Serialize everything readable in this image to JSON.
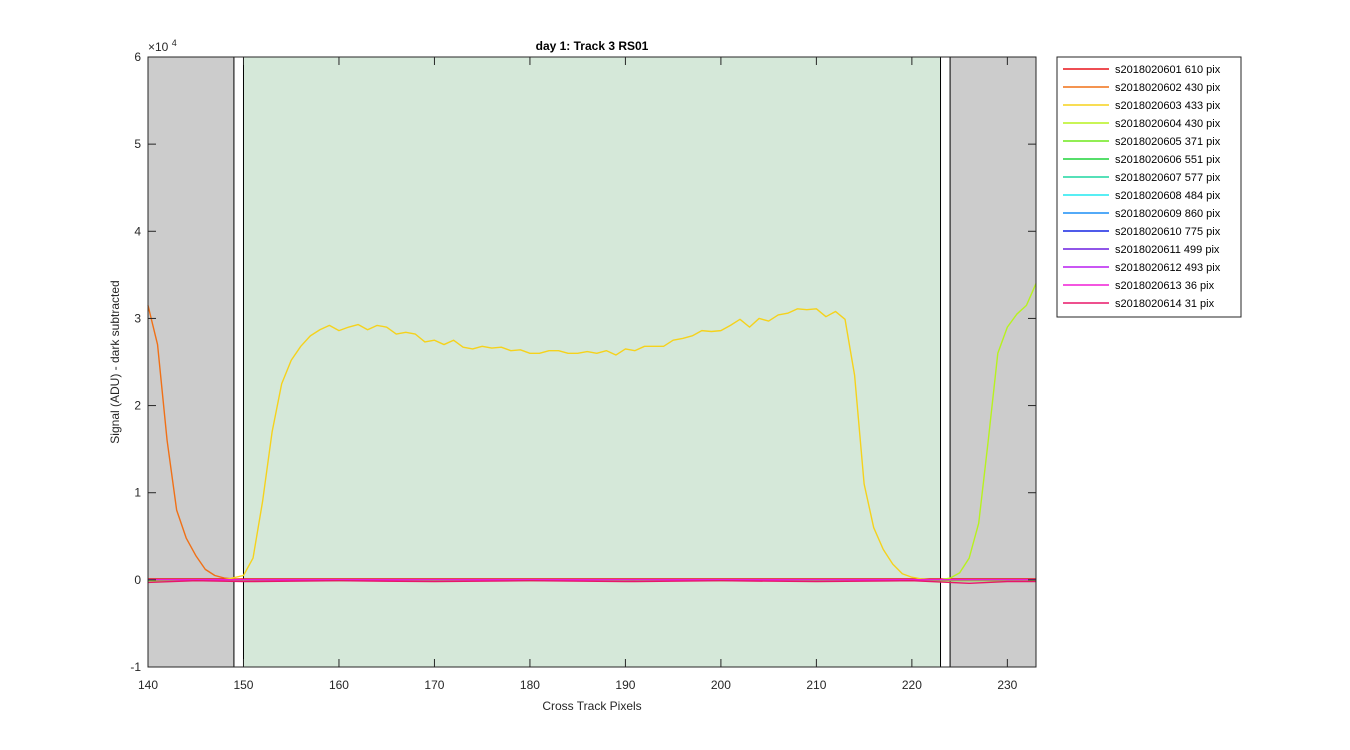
{
  "chart_data": {
    "type": "line",
    "title": "day 1: Track 3  RS01",
    "xlabel": "Cross Track Pixels",
    "ylabel": "Signal (ADU) - dark subtracted",
    "y_exponent_label": "×10",
    "y_exponent_power": "4",
    "xlim": [
      140,
      233
    ],
    "ylim": [
      -1,
      6
    ],
    "y_scale_note": "values in units of 10^4 ADU",
    "xticks": [
      140,
      150,
      160,
      170,
      180,
      190,
      200,
      210,
      220,
      230
    ],
    "yticks": [
      -1,
      0,
      1,
      2,
      3,
      4,
      5,
      6
    ],
    "grid": false,
    "legend_position": "outside-right",
    "regions": [
      {
        "kind": "excluded",
        "x0": 140,
        "x1": 149,
        "color": "#cccccc"
      },
      {
        "kind": "excluded",
        "x0": 224,
        "x1": 233,
        "color": "#cccccc"
      },
      {
        "kind": "included",
        "x0": 150,
        "x1": 223,
        "color": "#d5e8d9"
      }
    ],
    "boundary_boxes": [
      {
        "x0": 149,
        "x1": 150
      },
      {
        "x0": 223,
        "x1": 224
      }
    ],
    "series": [
      {
        "name": "s2018020601 610 pix",
        "color": "#e8141a",
        "x": [
          140,
          233
        ],
        "y": [
          0.01,
          0.01
        ]
      },
      {
        "name": "s2018020602 430 pix",
        "color": "#f07016",
        "x": [
          140,
          141,
          142,
          143,
          144,
          145,
          146,
          147,
          148,
          149,
          150,
          233
        ],
        "y": [
          3.15,
          2.7,
          1.6,
          0.8,
          0.48,
          0.28,
          0.12,
          0.05,
          0.02,
          0.01,
          0.0,
          0.0
        ]
      },
      {
        "name": "s2018020603 433 pix",
        "color": "#f5d21c",
        "x": [
          148,
          150,
          151,
          152,
          153,
          154,
          155,
          156,
          157,
          158,
          159,
          160,
          161,
          162,
          163,
          164,
          165,
          166,
          167,
          168,
          169,
          170,
          171,
          172,
          173,
          174,
          175,
          176,
          177,
          178,
          179,
          180,
          181,
          182,
          183,
          184,
          185,
          186,
          187,
          188,
          189,
          190,
          191,
          192,
          193,
          194,
          195,
          196,
          197,
          198,
          199,
          200,
          201,
          202,
          203,
          204,
          205,
          206,
          207,
          208,
          209,
          210,
          211,
          212,
          213,
          214,
          215,
          216,
          217,
          218,
          219,
          220,
          221,
          222,
          223,
          224
        ],
        "y": [
          0.0,
          0.05,
          0.25,
          0.9,
          1.7,
          2.25,
          2.52,
          2.68,
          2.8,
          2.87,
          2.92,
          2.86,
          2.9,
          2.93,
          2.87,
          2.92,
          2.9,
          2.82,
          2.84,
          2.82,
          2.73,
          2.75,
          2.7,
          2.75,
          2.67,
          2.65,
          2.68,
          2.66,
          2.67,
          2.63,
          2.64,
          2.6,
          2.6,
          2.63,
          2.63,
          2.6,
          2.6,
          2.62,
          2.6,
          2.63,
          2.58,
          2.65,
          2.63,
          2.68,
          2.68,
          2.68,
          2.75,
          2.77,
          2.8,
          2.86,
          2.85,
          2.86,
          2.92,
          2.99,
          2.9,
          3.0,
          2.97,
          3.04,
          3.06,
          3.11,
          3.1,
          3.11,
          3.02,
          3.08,
          2.99,
          2.35,
          1.1,
          0.6,
          0.35,
          0.18,
          0.07,
          0.03,
          0.01,
          0.0,
          0.0,
          0.0
        ]
      },
      {
        "name": "s2018020604 430 pix",
        "color": "#b7f21e",
        "x": [
          140,
          223,
          224,
          225,
          226,
          227,
          228,
          229,
          230,
          231,
          232,
          233
        ],
        "y": [
          0.0,
          0.0,
          0.02,
          0.08,
          0.25,
          0.65,
          1.6,
          2.6,
          2.9,
          3.05,
          3.15,
          3.4
        ]
      },
      {
        "name": "s2018020605 371 pix",
        "color": "#6fe91b",
        "x": [
          140,
          233
        ],
        "y": [
          -0.01,
          -0.01
        ]
      },
      {
        "name": "s2018020606 551 pix",
        "color": "#1fd43a",
        "x": [
          140,
          233
        ],
        "y": [
          0.0,
          0.0
        ]
      },
      {
        "name": "s2018020607 577 pix",
        "color": "#1ed6a0",
        "x": [
          140,
          233
        ],
        "y": [
          0.0,
          0.0
        ]
      },
      {
        "name": "s2018020608 484 pix",
        "color": "#21e8f0",
        "x": [
          140,
          233
        ],
        "y": [
          0.0,
          0.0
        ]
      },
      {
        "name": "s2018020609 860 pix",
        "color": "#1a8ef5",
        "x": [
          140,
          233
        ],
        "y": [
          0.0,
          0.0
        ]
      },
      {
        "name": "s2018020610 775 pix",
        "color": "#1525e3",
        "x": [
          140,
          233
        ],
        "y": [
          0.0,
          0.0
        ]
      },
      {
        "name": "s2018020611 499 pix",
        "color": "#6b1ee0",
        "x": [
          140,
          233
        ],
        "y": [
          0.0,
          0.0
        ]
      },
      {
        "name": "s2018020612 493 pix",
        "color": "#b91ef0",
        "x": [
          140,
          233
        ],
        "y": [
          0.0,
          0.0
        ]
      },
      {
        "name": "s2018020613 36 pix",
        "color": "#f01ed6",
        "x": [
          140,
          233
        ],
        "y": [
          0.0,
          0.0
        ]
      },
      {
        "name": "s2018020614 31 pix",
        "color": "#e81668",
        "x": [
          140,
          145,
          150,
          160,
          170,
          180,
          190,
          200,
          210,
          220,
          226,
          230,
          233
        ],
        "y": [
          -0.03,
          -0.01,
          -0.02,
          -0.01,
          -0.02,
          -0.01,
          -0.02,
          -0.01,
          -0.02,
          -0.01,
          -0.04,
          -0.02,
          -0.02
        ]
      }
    ]
  }
}
